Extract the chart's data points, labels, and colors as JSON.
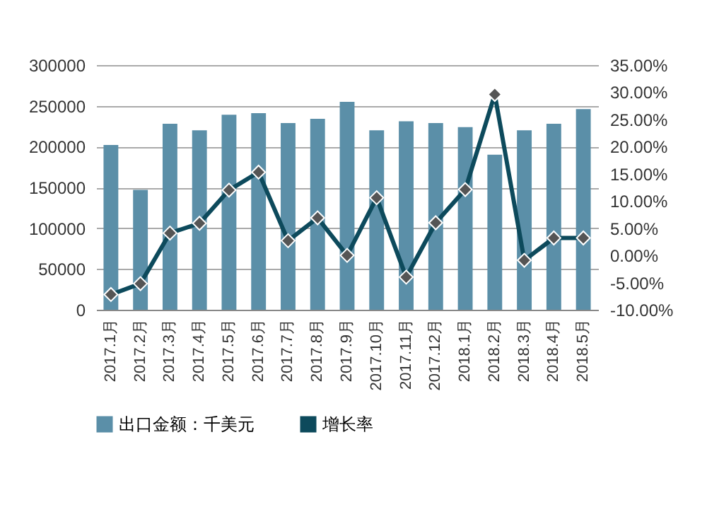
{
  "chart_data": {
    "type": "bar",
    "categories": [
      "2017.1月",
      "2017.2月",
      "2017.3月",
      "2017.4月",
      "2017.5月",
      "2017.6月",
      "2017.7月",
      "2017.8月",
      "2017.9月",
      "2017.10月",
      "2017.11月",
      "2017.12月",
      "2018.1月",
      "2018.2月",
      "2018.3月",
      "2018.4月",
      "2018.5月"
    ],
    "series": [
      {
        "name": "出口金额：千美元",
        "color": "#5b8fa8",
        "values": [
          202000,
          147000,
          228000,
          220000,
          239000,
          241000,
          229000,
          234000,
          255000,
          220000,
          231000,
          229000,
          224000,
          190000,
          220000,
          228000,
          246000
        ]
      },
      {
        "name": "增长率",
        "type": "line",
        "axis": "y2",
        "color": "#0d4a5c",
        "marker": "diamond",
        "values": [
          -7.2,
          -5.2,
          4.1,
          5.9,
          12.0,
          15.3,
          2.7,
          6.9,
          0,
          10.6,
          -4,
          6.0,
          12.1,
          29.6,
          -0.9,
          3.2,
          3.2
        ]
      }
    ],
    "ylim": [
      0,
      300000
    ],
    "yticks": [
      0,
      50000,
      100000,
      150000,
      200000,
      250000,
      300000
    ],
    "y2lim": [
      -10,
      35
    ],
    "y2ticks": [
      {
        "value": -10,
        "label": "-10.00%"
      },
      {
        "value": -5,
        "label": "-5.00%"
      },
      {
        "value": 0,
        "label": "0.00%"
      },
      {
        "value": 5,
        "label": "5.00%"
      },
      {
        "value": 10,
        "label": "10.00%"
      },
      {
        "value": 15,
        "label": "15.00%"
      },
      {
        "value": 20,
        "label": "20.00%"
      },
      {
        "value": 25,
        "label": "25.00%"
      },
      {
        "value": 30,
        "label": "30.00%"
      },
      {
        "value": 35,
        "label": "35.00%"
      }
    ],
    "grid": "y",
    "legend": "bottom"
  }
}
